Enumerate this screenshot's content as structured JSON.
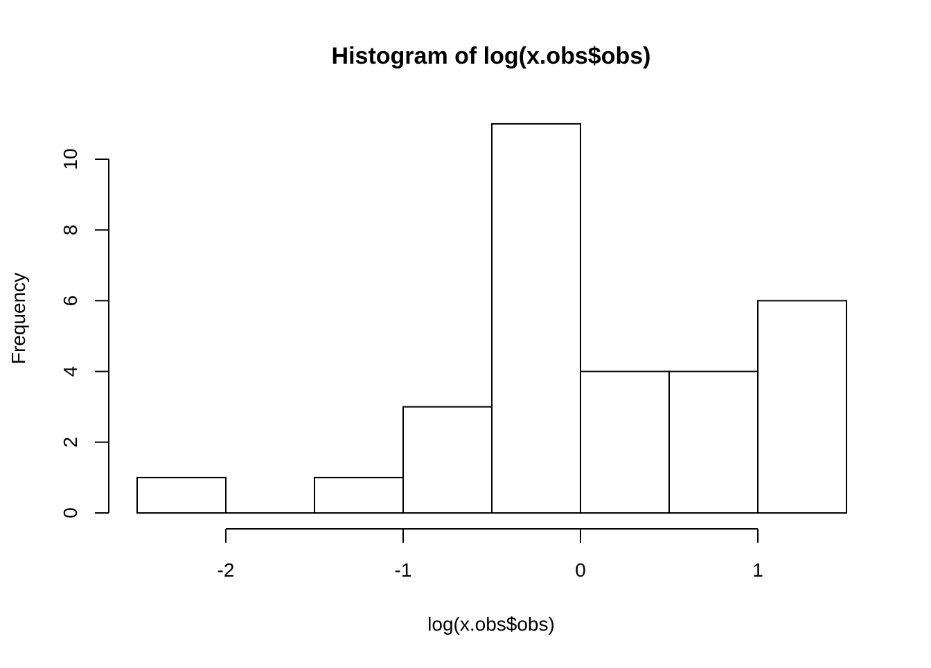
{
  "chart_data": {
    "type": "bar",
    "title": "Histogram of log(x.obs$obs)",
    "xlabel": "log(x.obs$obs)",
    "ylabel": "Frequency",
    "bin_edges": [
      -2.5,
      -2.0,
      -1.5,
      -1.0,
      -0.5,
      0.0,
      0.5,
      1.0,
      1.5
    ],
    "values": [
      1,
      0,
      1,
      3,
      11,
      4,
      4,
      6
    ],
    "x_ticks": [
      -2,
      -1,
      0,
      1
    ],
    "x_tick_labels": [
      "-2",
      "-1",
      "0",
      "1"
    ],
    "y_ticks": [
      0,
      2,
      4,
      6,
      8,
      10
    ],
    "y_tick_labels": [
      "0",
      "2",
      "4",
      "6",
      "8",
      "10"
    ],
    "xlim": [
      -2.5,
      1.5
    ],
    "ylim": [
      0,
      11
    ],
    "grid": false,
    "colors": {
      "bar_fill": "#ffffff",
      "bar_stroke": "#000000"
    }
  }
}
